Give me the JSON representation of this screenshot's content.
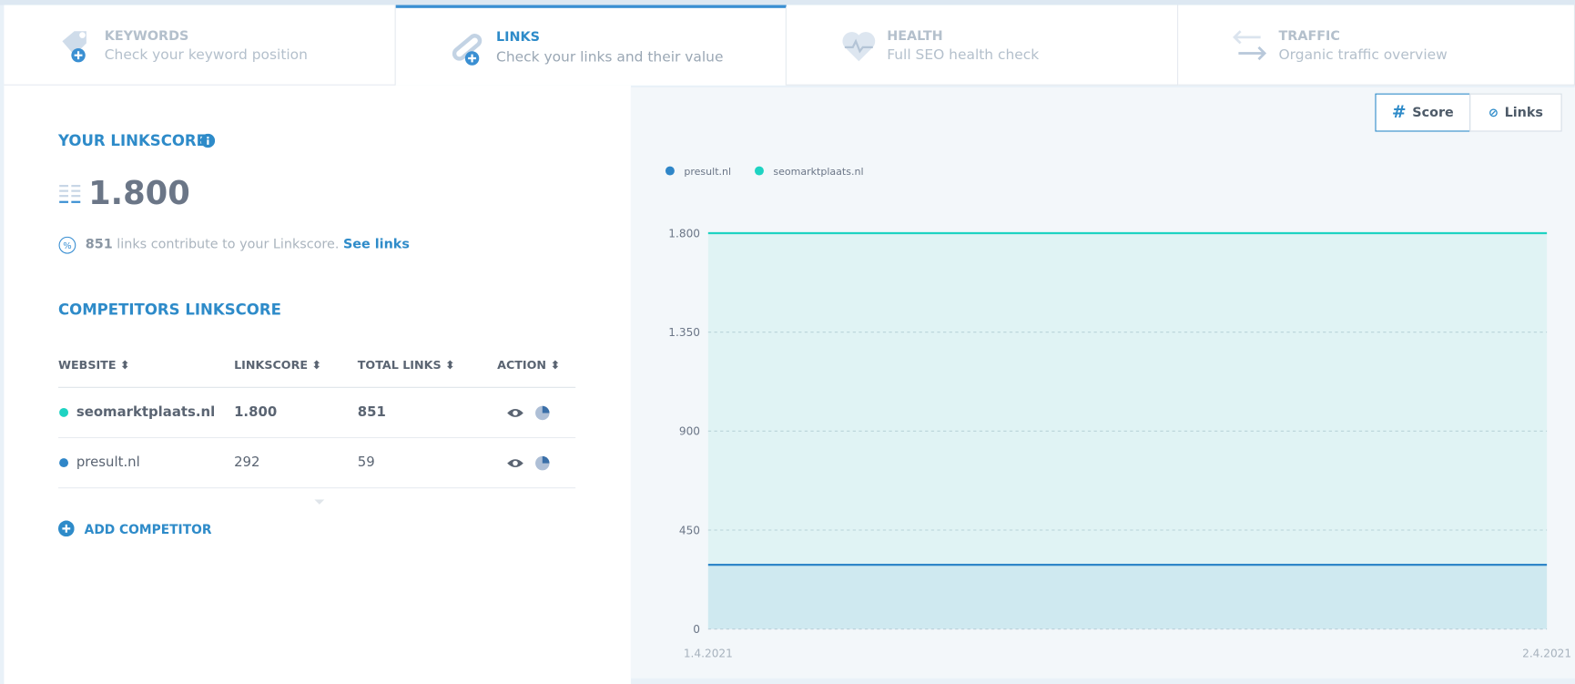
{
  "tabs": [
    {
      "title": "KEYWORDS",
      "subtitle": "Check your keyword position"
    },
    {
      "title": "LINKS",
      "subtitle": "Check your links and their value"
    },
    {
      "title": "HEALTH",
      "subtitle": "Full SEO health check"
    },
    {
      "title": "TRAFFIC",
      "subtitle": "Organic traffic overview"
    }
  ],
  "linkscore": {
    "title": "YOUR LINKSCORE",
    "value": "1.800",
    "links_count": "851",
    "links_text": "links contribute to your Linkscore.",
    "see_links": "See links"
  },
  "competitors": {
    "title": "COMPETITORS LINKSCORE",
    "columns": [
      "WEBSITE",
      "LINKSCORE",
      "TOTAL LINKS",
      "ACTION"
    ],
    "rows": [
      [
        "seomarktplaats.nl",
        "1.800",
        "851"
      ],
      [
        "presult.nl",
        "292",
        "59"
      ]
    ],
    "add": "ADD COMPETITOR"
  },
  "chart_toggle": [
    "Score",
    "Links"
  ],
  "chart_data": {
    "type": "line",
    "x": [
      "1.4.2021",
      "2.4.2021"
    ],
    "series": [
      {
        "name": "presult.nl",
        "color": "#2f86c8",
        "values": [
          292,
          292
        ]
      },
      {
        "name": "seomarktplaats.nl",
        "color": "#1ed3c2",
        "values": [
          1800,
          1800
        ]
      }
    ],
    "ylim": [
      0,
      1800
    ],
    "yticks": [
      0,
      450,
      900,
      {
        "value": 1350,
        "label": "1.350"
      },
      {
        "value": 1800,
        "label": "1.800"
      }
    ],
    "grid": true
  }
}
